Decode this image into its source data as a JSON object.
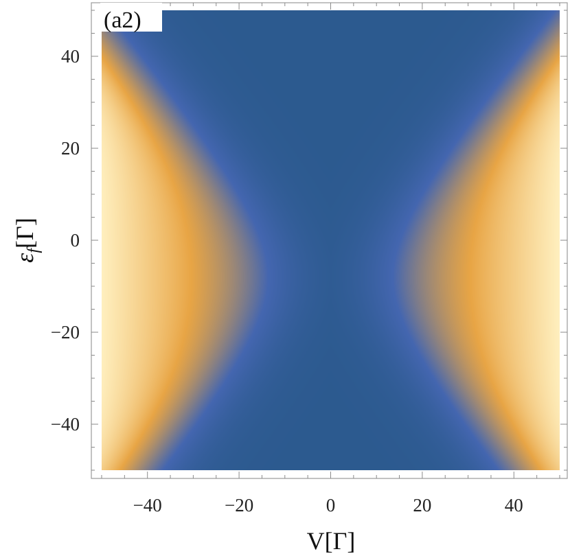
{
  "chart_data": {
    "type": "heatmap",
    "title": "",
    "panel_label": "(a2)",
    "xlabel": "V[Γ]",
    "ylabel": "εf[Γ]",
    "ylabel_main": "ε",
    "ylabel_sub": "f",
    "ylabel_unit": "[Γ]",
    "xlim": [
      -50,
      50
    ],
    "ylim": [
      -50,
      50
    ],
    "x_ticks": [
      -40,
      -20,
      0,
      20,
      40
    ],
    "x_tick_labels": [
      "−40",
      "−20",
      "0",
      "20",
      "40"
    ],
    "y_ticks": [
      -40,
      -20,
      0,
      20,
      40
    ],
    "y_tick_labels": [
      "−40",
      "−20",
      "0",
      "20",
      "40"
    ],
    "grid": false,
    "legend": "none",
    "color_scale": [
      "#2c5a8f",
      "#4466b0",
      "#e8a545",
      "#fff0c0"
    ],
    "intensity_center_y": -8,
    "contour_width_at_center": 12,
    "contour_curvature": 0.9
  }
}
